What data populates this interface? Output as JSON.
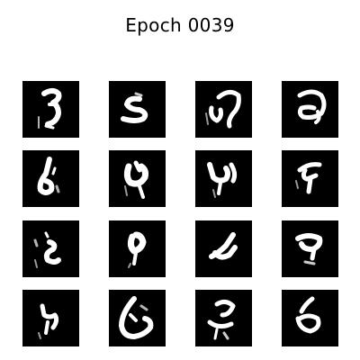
{
  "title": "Epoch 0039",
  "grid": {
    "rows": 4,
    "cols": 4,
    "tile_background": "#000000",
    "stroke_color": "#ffffff"
  },
  "samples": [
    {
      "label": "generated-sample-1"
    },
    {
      "label": "generated-sample-2"
    },
    {
      "label": "generated-sample-3"
    },
    {
      "label": "generated-sample-4"
    },
    {
      "label": "generated-sample-5"
    },
    {
      "label": "generated-sample-6"
    },
    {
      "label": "generated-sample-7"
    },
    {
      "label": "generated-sample-8"
    },
    {
      "label": "generated-sample-9"
    },
    {
      "label": "generated-sample-10"
    },
    {
      "label": "generated-sample-11"
    },
    {
      "label": "generated-sample-12"
    },
    {
      "label": "generated-sample-13"
    },
    {
      "label": "generated-sample-14"
    },
    {
      "label": "generated-sample-15"
    },
    {
      "label": "generated-sample-16"
    }
  ]
}
